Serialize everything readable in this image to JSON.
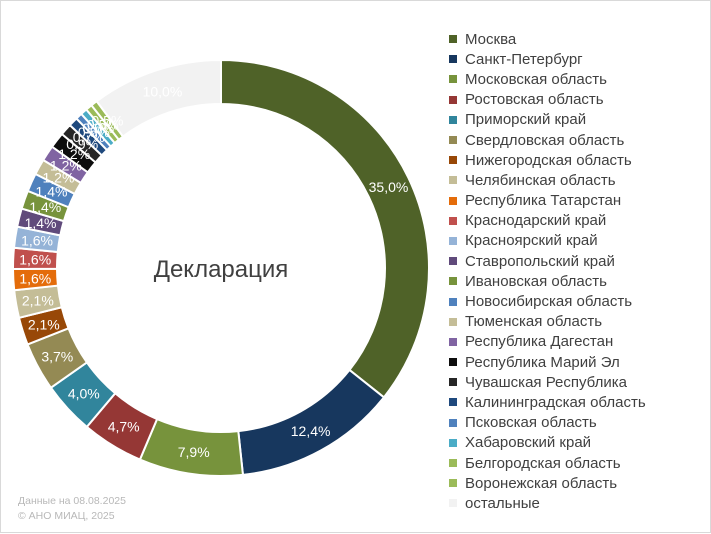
{
  "chart_data": {
    "type": "pie",
    "subtype": "doughnut",
    "center_label": "Декларация",
    "legend_position": "right",
    "categories": [
      "Москва",
      "Санкт-Петербург",
      "Московская область",
      "Ростовская область",
      "Приморский край",
      "Свердловская область",
      "Нижегородская область",
      "Челябинская область",
      "Республика Татарстан",
      "Краснодарский край",
      "Красноярский край",
      "Ставропольский край",
      "Ивановская область",
      "Новосибирская область",
      "Тюменская область",
      "Республика Дагестан",
      "Республика Марий Эл",
      "Чувашская Республика",
      "Калининградская область",
      "Псковская область",
      "Хабаровский край",
      "Белгородская область",
      "Воронежская область",
      "остальные"
    ],
    "values": [
      35.0,
      12.4,
      7.9,
      4.7,
      4.0,
      3.7,
      2.1,
      2.1,
      1.6,
      1.6,
      1.6,
      1.4,
      1.4,
      1.4,
      1.2,
      1.2,
      1.2,
      0.9,
      0.7,
      0.5,
      0.5,
      0.5,
      0.5,
      10.0
    ],
    "value_labels": [
      "35,0%",
      "12,4%",
      "7,9%",
      "4,7%",
      "4,0%",
      "3,7%",
      "2,1%",
      "2,1%",
      "1,6%",
      "1,6%",
      "1,6%",
      "1,4%",
      "1,4%",
      "1,4%",
      "1,2%",
      "1,2%",
      "1,2%",
      "0,9%",
      "0,7%",
      "0,5%",
      "0,5%",
      "0,5%",
      "0,5%",
      "10,0%"
    ],
    "colors": [
      "#4f6228",
      "#17375e",
      "#77933c",
      "#953735",
      "#31859c",
      "#948a54",
      "#984807",
      "#c4bd97",
      "#e46c0a",
      "#c0504d",
      "#95b3d7",
      "#604a7b",
      "#77933c",
      "#4f81bd",
      "#c4bd97",
      "#8064a2",
      "#0d0d0d",
      "#262626",
      "#1f497d",
      "#4f81bd",
      "#4bacc6",
      "#9bbb59",
      "#9bbb59",
      "#f2f2f2"
    ],
    "label_colors": [
      "#ffffff",
      "#ffffff",
      "#ffffff",
      "#ffffff",
      "#ffffff",
      "#ffffff",
      "#ffffff",
      "#ffffff",
      "#ffffff",
      "#ffffff",
      "#ffffff",
      "#ffffff",
      "#ffffff",
      "#ffffff",
      "#ffffff",
      "#ffffff",
      "#ffffff",
      "#ffffff",
      "#ffffff",
      "#ffffff",
      "#ffffff",
      "#ffffff",
      "#ffffff",
      "#ffffff"
    ]
  },
  "footer": {
    "date_line": "Данные на 08.08.2025",
    "copyright_line": "© АНО МИАЦ, 2025"
  }
}
